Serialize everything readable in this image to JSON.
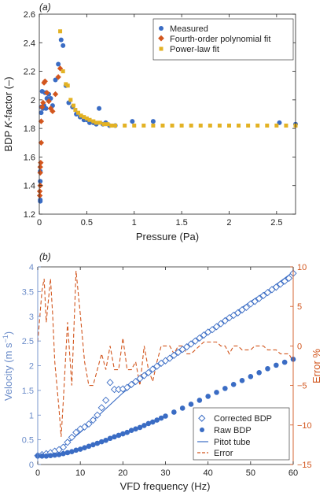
{
  "colors": {
    "measured": "#3A6CC4",
    "poly": "#D2561E",
    "power": "#E3B224",
    "velocity_axis": "#6B8CC9",
    "error_axis": "#D2561E",
    "axis": "#222222"
  },
  "chart_data": [
    {
      "type": "scatter",
      "panel_label": "(a)",
      "xlabel": "Pressure (Pa)",
      "ylabel_pre": "BDP ",
      "ylabel_em": "K",
      "ylabel_post": "-factor (–)",
      "xlim": [
        0,
        2.7
      ],
      "ylim": [
        1.2,
        2.6
      ],
      "xticks": [
        0,
        0.5,
        1,
        1.5,
        2,
        2.5
      ],
      "yticks": [
        1.2,
        1.4,
        1.6,
        1.8,
        2.0,
        2.2,
        2.4,
        2.6
      ],
      "xtick_labels": [
        "0",
        "0.5",
        "1",
        "1.5",
        "2",
        "2.5"
      ],
      "ytick_labels": [
        "1.2",
        "1.4",
        "1.6",
        "1.8",
        "2",
        "2.2",
        "2.4",
        "2.6"
      ],
      "grid": false,
      "legend_position": "top-right",
      "series": [
        {
          "name": "Measured",
          "marker": "circle",
          "color": "#3A6CC4",
          "x": [
            0.01,
            0.01,
            0.01,
            0.01,
            0.02,
            0.02,
            0.03,
            0.04,
            0.05,
            0.06,
            0.07,
            0.08,
            0.1,
            0.12,
            0.14,
            0.17,
            0.2,
            0.23,
            0.25,
            0.28,
            0.31,
            0.35,
            0.39,
            0.43,
            0.47,
            0.5,
            0.53,
            0.57,
            0.6,
            0.63,
            0.67,
            0.7,
            0.74,
            0.8,
            0.98,
            1.2,
            2.53,
            2.7
          ],
          "y": [
            1.29,
            1.3,
            1.43,
            1.5,
            1.91,
            1.95,
            2.06,
            1.94,
            1.96,
            2.05,
            1.94,
            2.01,
            2.04,
            2.01,
            1.96,
            2.14,
            2.25,
            2.42,
            2.38,
            2.1,
            1.98,
            1.95,
            1.9,
            1.88,
            1.86,
            1.86,
            1.84,
            1.84,
            1.83,
            1.94,
            1.83,
            1.84,
            1.82,
            1.82,
            1.85,
            1.85,
            1.84,
            1.83
          ]
        },
        {
          "name": "Fourth-order polynomial fit",
          "marker": "diamond",
          "color": "#D2561E",
          "x": [
            0.005,
            0.005,
            0.01,
            0.01,
            0.01,
            0.015,
            0.02,
            0.02,
            0.03,
            0.04,
            0.05,
            0.06,
            0.08,
            0.1,
            0.12,
            0.14,
            0.17,
            0.2,
            0.22
          ],
          "y": [
            1.33,
            1.36,
            1.4,
            1.49,
            1.53,
            1.56,
            1.7,
            1.85,
            1.95,
            1.98,
            2.12,
            2.13,
            2.05,
            1.99,
            1.94,
            1.92,
            2.04,
            2.16,
            2.22
          ]
        },
        {
          "name": "Power-law fit",
          "marker": "square",
          "color": "#E3B224",
          "x": [
            0.22,
            0.25,
            0.28,
            0.3,
            0.33,
            0.36,
            0.38,
            0.41,
            0.44,
            0.47,
            0.5,
            0.53,
            0.57,
            0.6,
            0.64,
            0.68,
            0.72,
            0.76,
            0.8,
            0.9,
            1.0,
            1.1,
            1.2,
            1.3,
            1.4,
            1.5,
            1.6,
            1.7,
            1.8,
            1.9,
            2.0,
            2.1,
            2.2,
            2.3,
            2.4,
            2.5,
            2.6,
            2.7
          ],
          "y": [
            2.48,
            2.2,
            2.11,
            2.1,
            2.0,
            1.96,
            1.93,
            1.91,
            1.89,
            1.88,
            1.87,
            1.86,
            1.85,
            1.84,
            1.84,
            1.83,
            1.83,
            1.82,
            1.82,
            1.82,
            1.82,
            1.82,
            1.82,
            1.82,
            1.82,
            1.82,
            1.82,
            1.82,
            1.82,
            1.82,
            1.82,
            1.82,
            1.82,
            1.82,
            1.82,
            1.82,
            1.82,
            1.82
          ]
        }
      ]
    },
    {
      "type": "line",
      "panel_label": "(b)",
      "xlabel": "VFD frequency (Hz)",
      "ylabel_left_pre": "Velocity (m s",
      "ylabel_left_sup": "−1",
      "ylabel_left_post": ")",
      "ylabel_right": "Error %",
      "xlim": [
        0,
        60
      ],
      "ylim_left": [
        0,
        4
      ],
      "ylim_right": [
        -15,
        10
      ],
      "xticks": [
        0,
        10,
        20,
        30,
        40,
        50,
        60
      ],
      "xtick_labels": [
        "0",
        "10",
        "20",
        "30",
        "40",
        "50",
        "60"
      ],
      "yticks_left": [
        0,
        0.5,
        1,
        1.5,
        2,
        2.5,
        3,
        3.5,
        4
      ],
      "ytick_labels_left": [
        "0",
        "0.5",
        "1",
        "1.5",
        "2",
        "2.5",
        "3",
        "3.5",
        "4"
      ],
      "yticks_right": [
        -15,
        -10,
        -5,
        0,
        5,
        10
      ],
      "ytick_labels_right": [
        "−15",
        "−10",
        "−5",
        "0",
        "5",
        "10"
      ],
      "grid": false,
      "legend_position": "bottom-right",
      "series": [
        {
          "name": "Corrected BDP",
          "marker": "diamond-open",
          "axis": "left",
          "color": "#3A6CC4",
          "x": [
            0,
            1,
            2,
            3,
            4,
            5,
            6,
            7,
            8,
            9,
            10,
            11,
            12,
            13,
            14,
            15,
            16,
            17,
            18,
            19,
            20,
            21,
            22,
            23,
            24,
            25,
            26,
            27,
            28,
            29,
            30,
            31,
            32,
            33,
            34,
            35,
            36,
            37,
            38,
            39,
            40,
            41,
            42,
            43,
            44,
            45,
            46,
            47,
            48,
            49,
            50,
            51,
            52,
            53,
            54,
            55,
            56,
            57,
            58,
            59,
            60
          ],
          "y": [
            0.18,
            0.2,
            0.22,
            0.24,
            0.27,
            0.3,
            0.35,
            0.45,
            0.55,
            0.65,
            0.72,
            0.76,
            0.82,
            0.9,
            1.0,
            1.15,
            1.3,
            1.66,
            1.52,
            1.52,
            1.53,
            1.56,
            1.62,
            1.68,
            1.74,
            1.8,
            1.86,
            1.93,
            1.99,
            2.05,
            2.1,
            2.15,
            2.21,
            2.27,
            2.33,
            2.38,
            2.44,
            2.5,
            2.56,
            2.62,
            2.68,
            2.73,
            2.79,
            2.85,
            2.91,
            2.97,
            3.02,
            3.07,
            3.13,
            3.18,
            3.25,
            3.3,
            3.36,
            3.42,
            3.48,
            3.54,
            3.59,
            3.65,
            3.71,
            3.77,
            3.87
          ]
        },
        {
          "name": "Raw BDP",
          "marker": "circle",
          "axis": "left",
          "color": "#3A6CC4",
          "x": [
            0,
            1,
            2,
            3,
            4,
            5,
            6,
            7,
            8,
            9,
            10,
            11,
            12,
            13,
            14,
            15,
            16,
            17,
            18,
            19,
            20,
            21,
            22,
            23,
            24,
            25,
            26,
            27,
            28,
            29,
            30,
            32,
            34,
            36,
            38,
            40,
            42,
            44,
            46,
            48,
            50,
            52,
            54,
            56,
            58,
            60
          ],
          "y": [
            0.17,
            0.17,
            0.17,
            0.18,
            0.19,
            0.2,
            0.22,
            0.24,
            0.26,
            0.29,
            0.31,
            0.34,
            0.37,
            0.4,
            0.43,
            0.46,
            0.49,
            0.53,
            0.56,
            0.59,
            0.62,
            0.65,
            0.69,
            0.72,
            0.75,
            0.79,
            0.83,
            0.86,
            0.9,
            0.94,
            0.98,
            1.06,
            1.14,
            1.22,
            1.3,
            1.38,
            1.46,
            1.54,
            1.62,
            1.7,
            1.78,
            1.86,
            1.94,
            2.01,
            2.07,
            2.13
          ]
        },
        {
          "name": "Pitot tube",
          "marker": "line-solid",
          "axis": "left",
          "color": "#3A6CC4",
          "x": [
            0,
            5,
            10,
            15,
            20,
            25,
            30,
            35,
            40,
            45,
            50,
            55,
            60
          ],
          "y": [
            0.15,
            0.3,
            0.65,
            1.05,
            1.45,
            1.78,
            2.1,
            2.4,
            2.7,
            3.0,
            3.3,
            3.58,
            3.9
          ]
        },
        {
          "name": "Error",
          "marker": "line-dashed",
          "axis": "right",
          "color": "#D2561E",
          "x": [
            0,
            1,
            1.5,
            2,
            3,
            3.5,
            4,
            5,
            5.5,
            6,
            7,
            8,
            9,
            10,
            11,
            12,
            13,
            14,
            15,
            16,
            17,
            18,
            19,
            20,
            21,
            22,
            23,
            24,
            25,
            26,
            27,
            28,
            29,
            30,
            31,
            32,
            33,
            34,
            35,
            36,
            37,
            38,
            39,
            40,
            41,
            42,
            43,
            44,
            45,
            46,
            47,
            48,
            49,
            50,
            51,
            52,
            53,
            54,
            55,
            56,
            57,
            58,
            59,
            60
          ],
          "y": [
            0.5,
            7,
            8.5,
            3,
            8.5,
            4,
            -2,
            -8,
            -11.5,
            -7,
            3,
            -5,
            9.5,
            4,
            -2,
            -5,
            -5,
            -3,
            -1,
            -3,
            0,
            -3,
            -3,
            1,
            -3,
            -3,
            -2,
            -5,
            0,
            -3,
            -4.5,
            -2,
            0,
            0,
            0,
            -1,
            0,
            0,
            -1,
            -1,
            -0.5,
            0,
            0.5,
            0.5,
            0.5,
            0.5,
            0,
            0,
            -1,
            0,
            0,
            -0.5,
            -0.5,
            -0.5,
            0,
            0,
            0,
            -0.5,
            -0.5,
            -0.5,
            -1,
            -1,
            -1,
            -2
          ]
        }
      ]
    }
  ]
}
